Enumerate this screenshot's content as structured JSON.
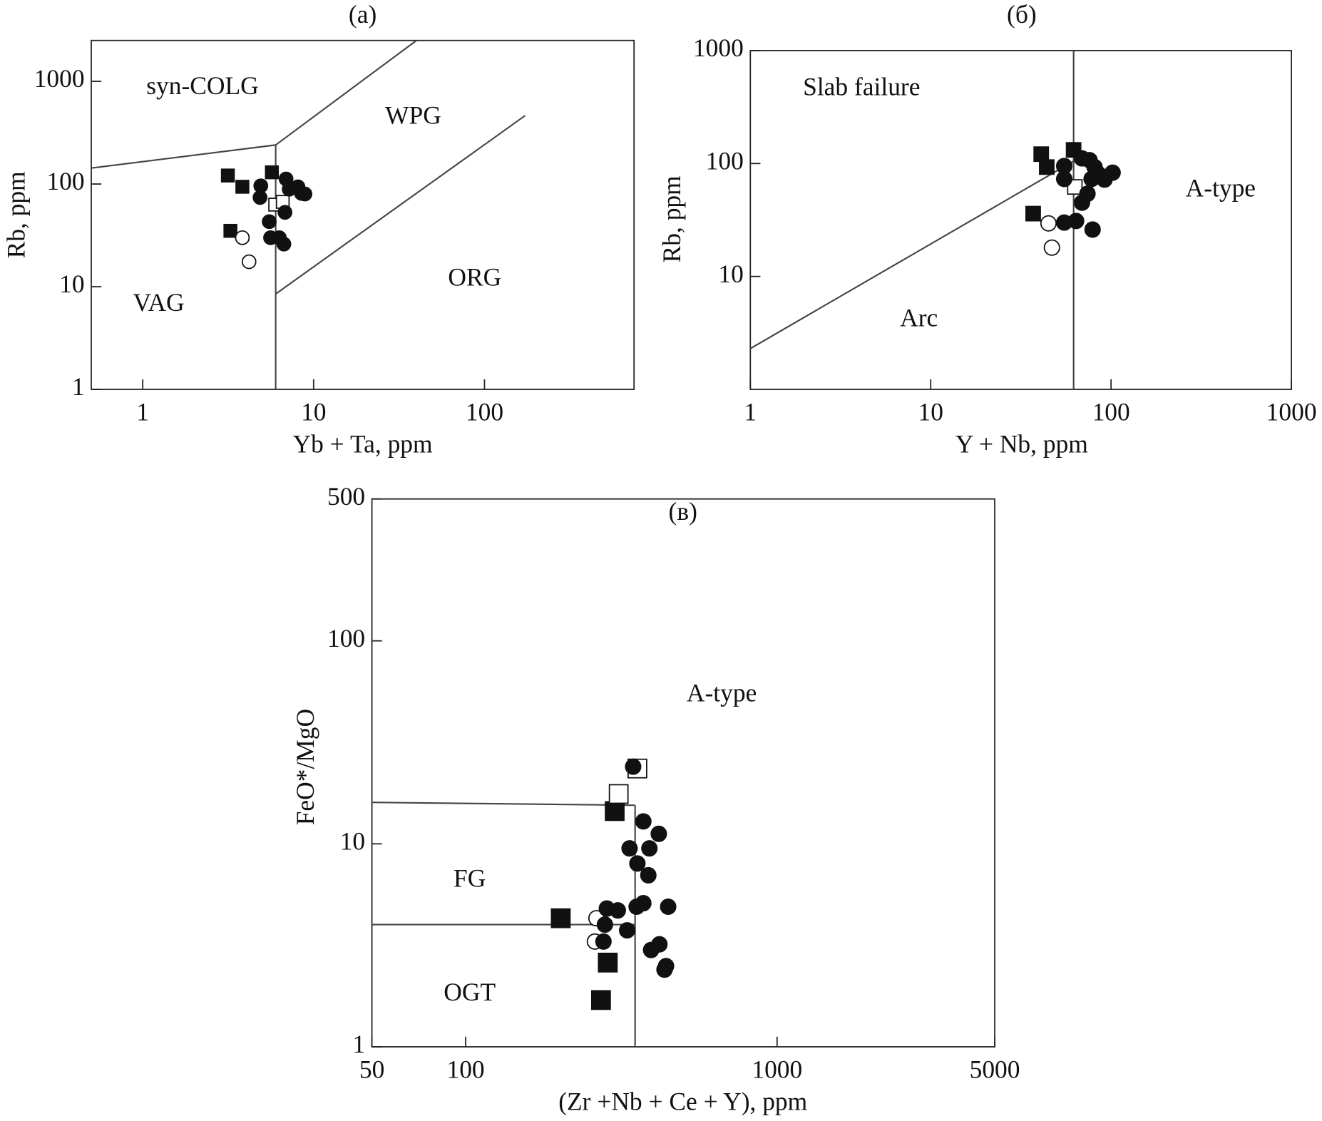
{
  "chart_data": [
    {
      "type": "scatter",
      "title": "(a)",
      "xlabel": "Yb + Ta, ppm",
      "ylabel": "Rb, ppm",
      "xscale": "log",
      "yscale": "log",
      "xlim": [
        0.5,
        750
      ],
      "ylim": [
        1,
        2500
      ],
      "xticks": [
        1,
        10,
        100
      ],
      "yticks": [
        1,
        10,
        100,
        1000
      ],
      "annotations": [
        "syn-COLG",
        "WPG",
        "VAG",
        "ORG"
      ],
      "boundaries": [
        {
          "x": [
            0.5,
            6
          ],
          "y": [
            143,
            240
          ]
        },
        {
          "x": [
            6,
            40
          ],
          "y": [
            240,
            2500
          ]
        },
        {
          "x": [
            6,
            6
          ],
          "y": [
            1,
            240
          ]
        },
        {
          "x": [
            6,
            173
          ],
          "y": [
            8.5,
            464
          ]
        }
      ],
      "series": [
        {
          "marker": "square",
          "filled": true,
          "color": "#111111",
          "x": [
            3.15,
            3.83,
            5.7,
            3.26
          ],
          "y": [
            121,
            94,
            130,
            35
          ]
        },
        {
          "marker": "circle",
          "filled": false,
          "color": "#111111",
          "x": [
            3.83,
            4.19
          ],
          "y": [
            30,
            17.5
          ]
        },
        {
          "marker": "square",
          "filled": false,
          "color": "#111111",
          "x": [
            5.96,
            6.6
          ],
          "y": [
            63,
            67
          ]
        },
        {
          "marker": "circle",
          "filled": true,
          "color": "#111111",
          "x": [
            4.91,
            4.86,
            5.5,
            5.6,
            6.7,
            6.9,
            7.2,
            6.8,
            8.1,
            8.5,
            8.9,
            6.3
          ],
          "y": [
            96,
            74,
            43,
            30,
            26,
            112,
            89,
            53,
            94,
            81,
            80,
            30
          ]
        }
      ]
    },
    {
      "type": "scatter",
      "title": "(б)",
      "xlabel": "Y + Nb, ppm",
      "ylabel": "Rb, ppm",
      "xscale": "log",
      "yscale": "log",
      "xlim": [
        1,
        1000
      ],
      "ylim": [
        1,
        1000
      ],
      "xticks": [
        1,
        10,
        100,
        1000
      ],
      "yticks": [
        10,
        100,
        1000
      ],
      "annotations": [
        "Slab failure",
        "A-type",
        "Arc"
      ],
      "boundaries": [
        {
          "x": [
            1,
            62
          ],
          "y": [
            2.3,
            105
          ]
        },
        {
          "x": [
            62,
            62
          ],
          "y": [
            1,
            1000
          ]
        }
      ],
      "series": [
        {
          "marker": "square",
          "filled": true,
          "color": "#111111",
          "x": [
            41,
            44,
            62,
            37
          ],
          "y": [
            121,
            93,
            132,
            36
          ]
        },
        {
          "marker": "circle",
          "filled": false,
          "color": "#111111",
          "x": [
            45,
            47
          ],
          "y": [
            29.5,
            18
          ]
        },
        {
          "marker": "square",
          "filled": false,
          "color": "#111111",
          "x": [
            63
          ],
          "y": [
            62
          ]
        },
        {
          "marker": "circle",
          "filled": true,
          "color": "#111111",
          "x": [
            55,
            55,
            69,
            76,
            81,
            85,
            92,
            102,
            74,
            69,
            64,
            55,
            79,
            78
          ],
          "y": [
            95,
            73,
            111,
            107,
            93,
            81,
            72,
            83,
            54,
            45,
            31,
            30,
            26,
            73
          ]
        }
      ]
    },
    {
      "type": "scatter",
      "title": "(в)",
      "xlabel": "(Zr +Nb + Ce + Y), ppm",
      "ylabel": "FeO*/MgO",
      "xscale": "log",
      "yscale": "log",
      "xlim": [
        50,
        5000
      ],
      "ylim": [
        1,
        500
      ],
      "xticks": [
        50,
        100,
        1000,
        5000
      ],
      "yticks": [
        1,
        10,
        100,
        500
      ],
      "annotations": [
        "A-type",
        "FG",
        "OGT"
      ],
      "boundaries": [
        {
          "x": [
            50,
            350
          ],
          "y": [
            16,
            15.5
          ]
        },
        {
          "x": [
            350,
            350
          ],
          "y": [
            1,
            15.5
          ]
        },
        {
          "x": [
            50,
            350
          ],
          "y": [
            4,
            4
          ]
        }
      ],
      "series": [
        {
          "marker": "square",
          "filled": true,
          "color": "#111111",
          "x": [
            301,
            202,
            286,
            272
          ],
          "y": [
            14.5,
            4.3,
            2.6,
            1.7
          ]
        },
        {
          "marker": "square",
          "filled": false,
          "color": "#111111",
          "x": [
            356,
            310
          ],
          "y": [
            23.5,
            17.6
          ]
        },
        {
          "marker": "circle",
          "filled": false,
          "color": "#111111",
          "x": [
            263,
            260
          ],
          "y": [
            4.3,
            3.3
          ]
        },
        {
          "marker": "circle",
          "filled": true,
          "color": "#111111",
          "x": [
            345,
            372,
            417,
            336,
            389,
            356,
            386,
            284,
            308,
            372,
            354,
            447,
            280,
            330,
            277,
            394,
            419,
            440,
            435
          ],
          "y": [
            24,
            12.9,
            11.2,
            9.5,
            9.5,
            8.0,
            7.0,
            4.8,
            4.7,
            5.1,
            4.9,
            4.9,
            4.0,
            3.75,
            3.3,
            3.0,
            3.2,
            2.5,
            2.4
          ]
        }
      ]
    }
  ]
}
